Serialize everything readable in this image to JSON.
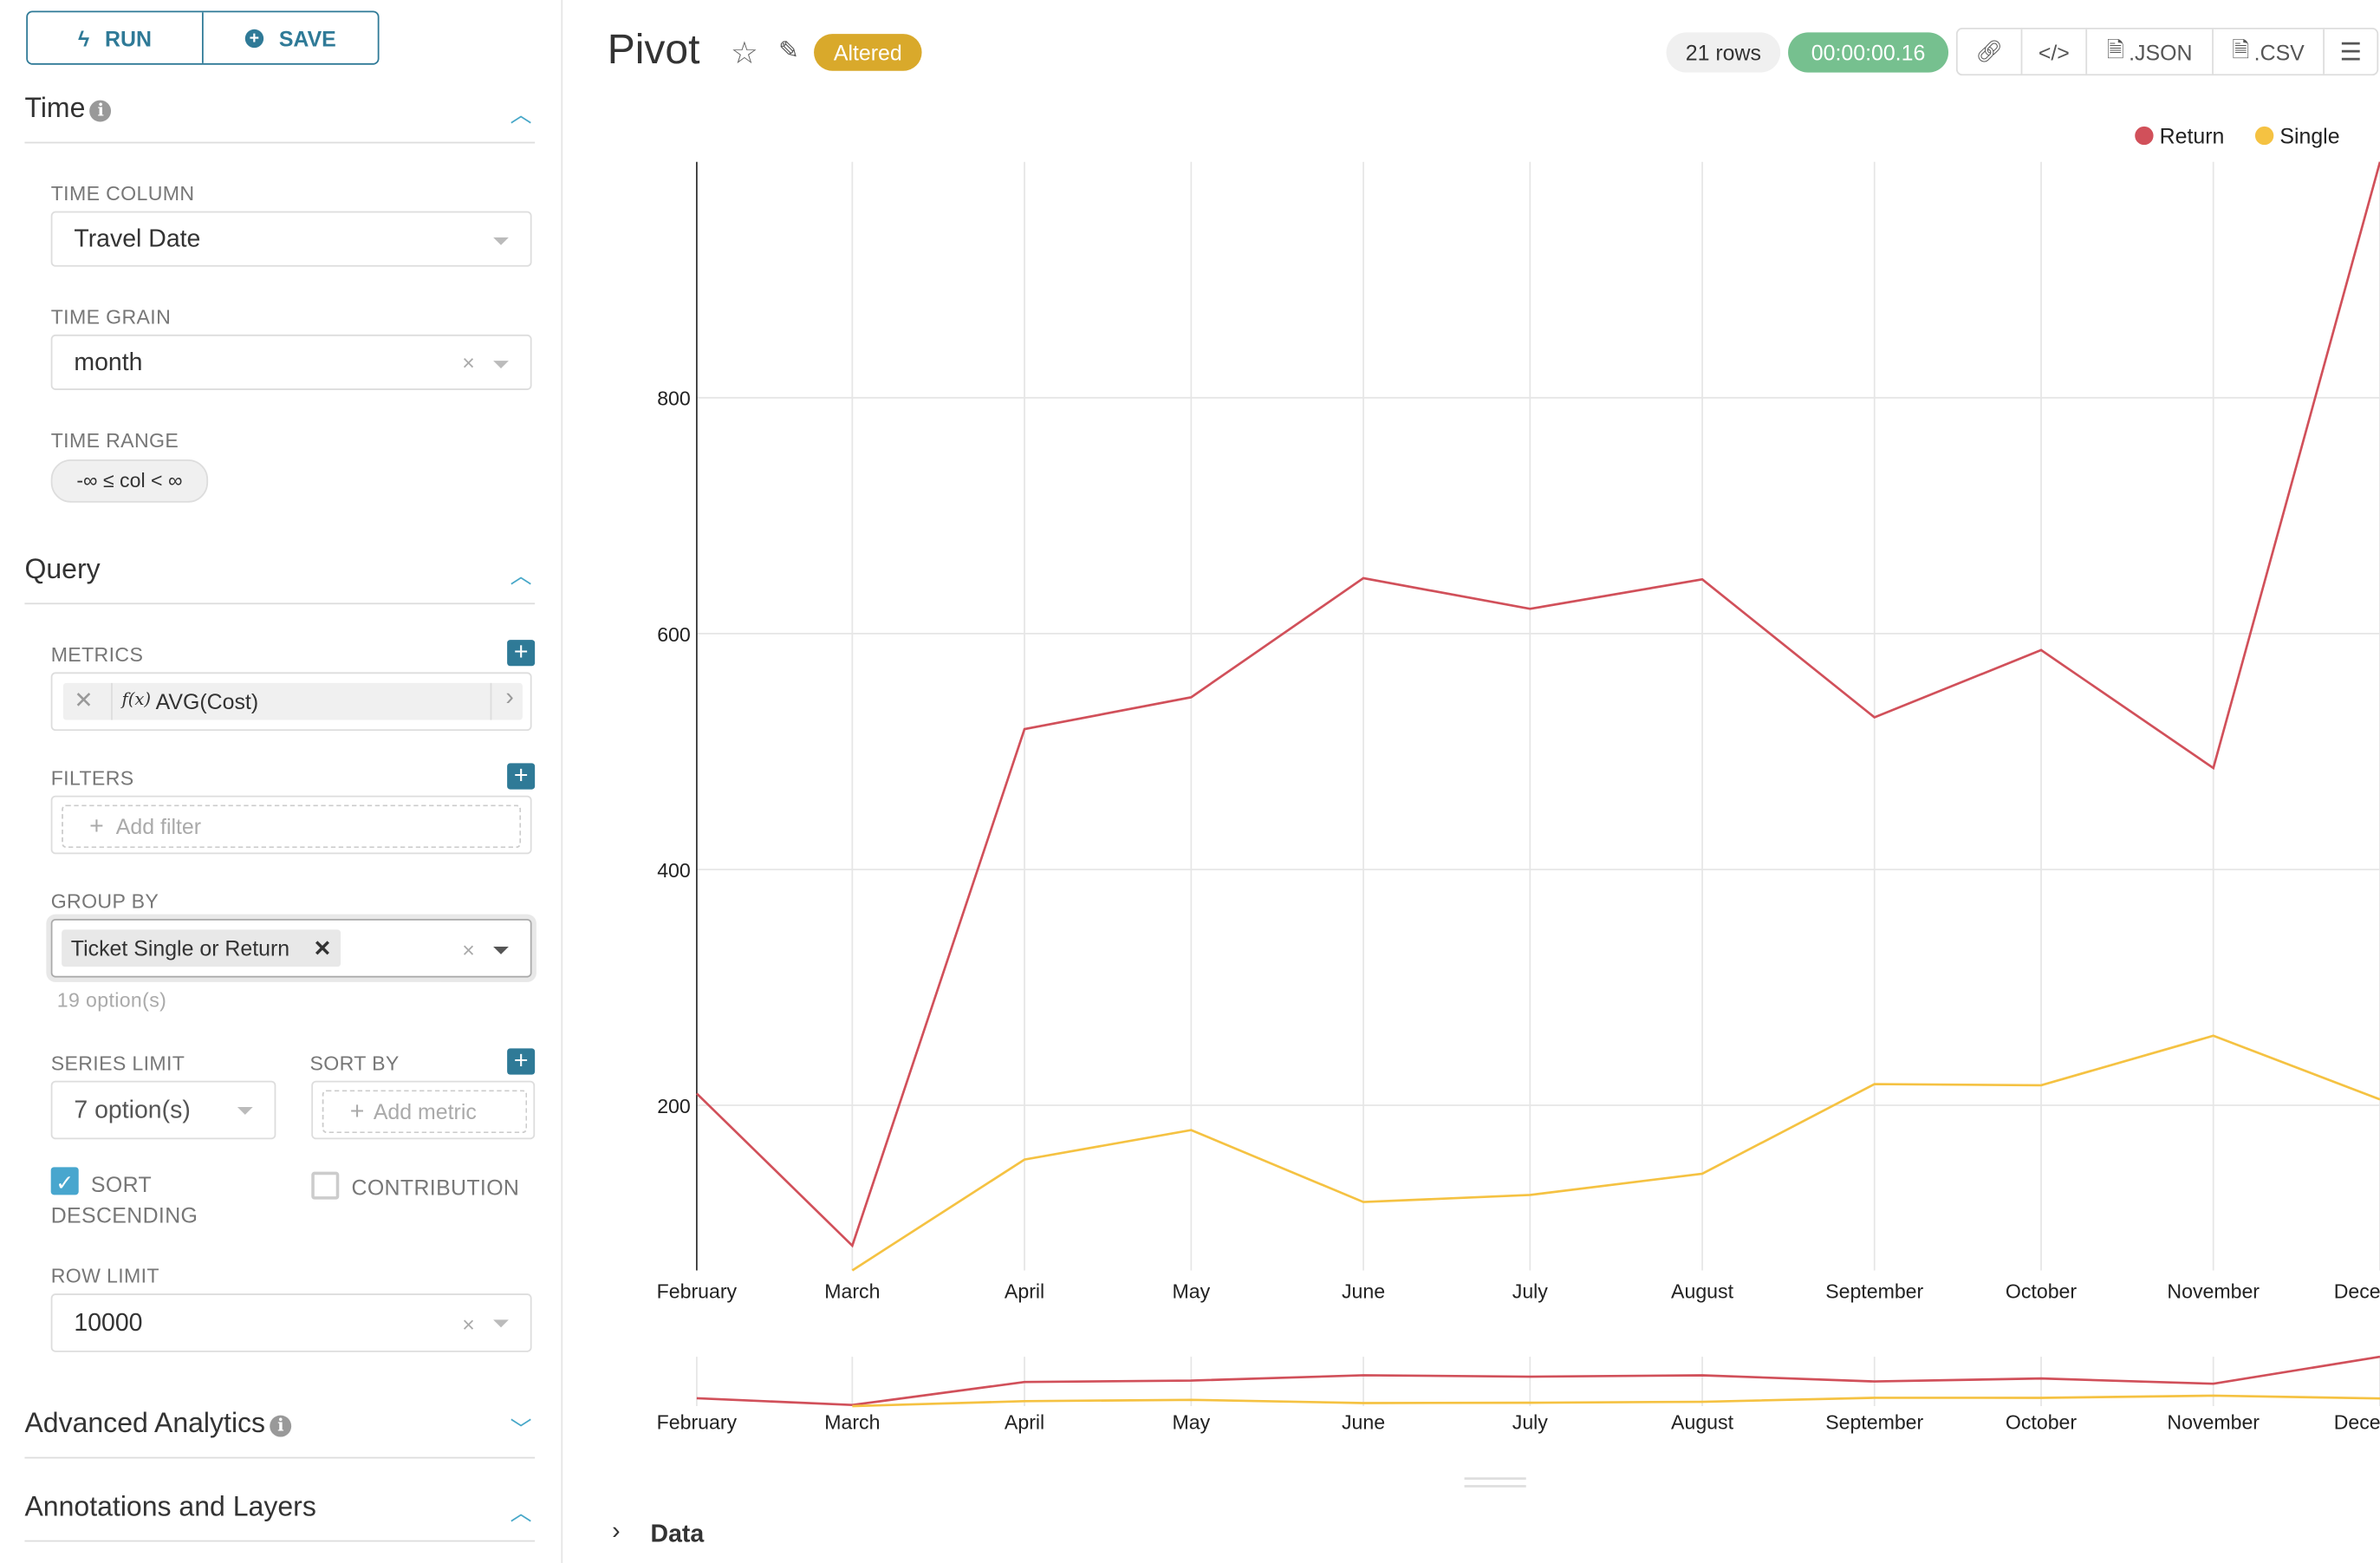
{
  "sidebar": {
    "run_label": "RUN",
    "save_label": "SAVE",
    "time_section": {
      "title": "Time",
      "time_column_label": "TIME COLUMN",
      "time_column_value": "Travel Date",
      "time_grain_label": "TIME GRAIN",
      "time_grain_value": "month",
      "time_range_label": "TIME RANGE",
      "time_range_value": "-∞ ≤ col < ∞"
    },
    "query_section": {
      "title": "Query",
      "metrics_label": "METRICS",
      "metric_value": "AVG(Cost)",
      "metric_fx": "f(x)",
      "filters_label": "FILTERS",
      "add_filter": "Add filter",
      "group_by_label": "GROUP BY",
      "group_by_tag": "Ticket Single or Return",
      "group_by_options": "19 option(s)",
      "series_limit_label": "SERIES LIMIT",
      "series_limit_value": "7 option(s)",
      "sort_by_label": "SORT BY",
      "add_metric": "Add metric",
      "sort_descending_label": "SORT DESCENDING",
      "sort_descending_checked": true,
      "contribution_label": "CONTRIBUTION",
      "contribution_checked": false,
      "row_limit_label": "ROW LIMIT",
      "row_limit_value": "10000"
    },
    "advanced_analytics_title": "Advanced Analytics",
    "annotations_title": "Annotations and Layers"
  },
  "header": {
    "title": "Pivot",
    "altered_badge": "Altered",
    "rows": "21 rows",
    "timer": "00:00:00.16",
    "json_label": ".JSON",
    "csv_label": ".CSV"
  },
  "data_section_label": "Data",
  "colors": {
    "accent": "#2f7a97",
    "return": "#d1505a",
    "single": "#f5c242",
    "altered": "#d9a92b",
    "timer": "#76c08f"
  },
  "chart_data": {
    "type": "line",
    "x": [
      "February",
      "March",
      "April",
      "May",
      "June",
      "July",
      "August",
      "September",
      "October",
      "November",
      "December"
    ],
    "series": [
      {
        "name": "Return",
        "color": "#d1505a",
        "values": [
          210,
          81,
          519,
          546,
          647,
          621,
          646,
          529,
          586,
          486,
          1000
        ]
      },
      {
        "name": "Single",
        "color": "#f5c242",
        "values": [
          null,
          60,
          154,
          179,
          118,
          124,
          142,
          218,
          217,
          259,
          205
        ]
      }
    ],
    "yticks": [
      200,
      400,
      600,
      800
    ],
    "ylim": [
      60,
      1000
    ],
    "grid": true,
    "legend": "top-right",
    "brush": true
  }
}
